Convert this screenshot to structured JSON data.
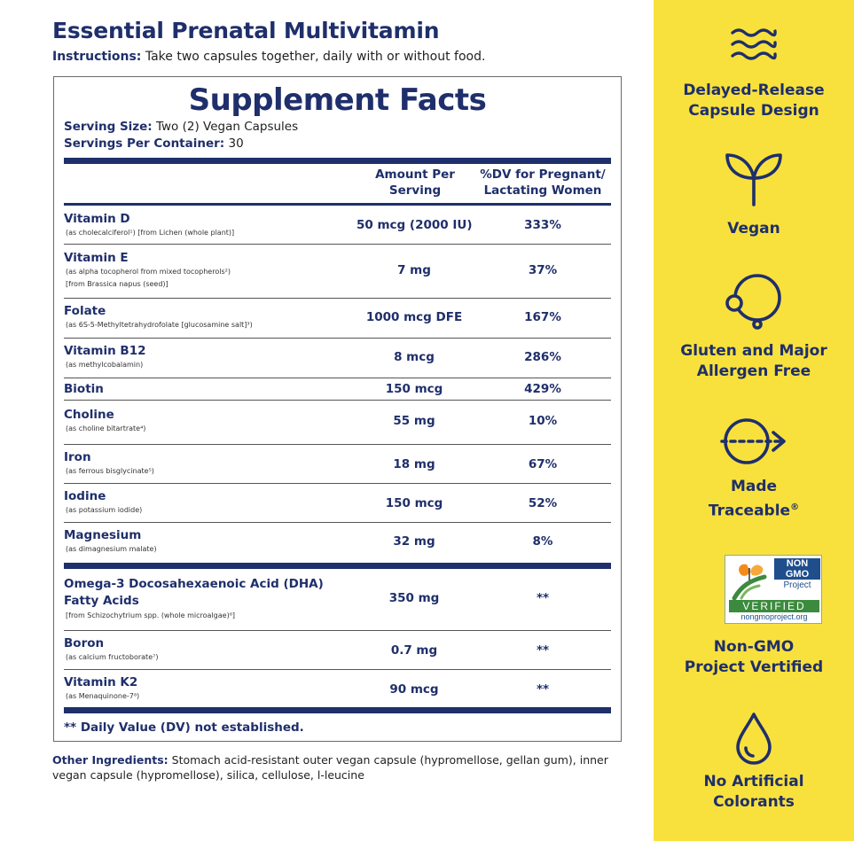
{
  "header": {
    "title": "Essential Prenatal Multivitamin",
    "instructions_label": "Instructions:",
    "instructions_text": " Take two capsules together, daily with or without food."
  },
  "facts": {
    "title": "Supplement Facts",
    "serving_size_label": "Serving Size:",
    "serving_size_value": " Two (2) Vegan Capsules",
    "servings_label": "Servings Per Container:",
    "servings_value": " 30",
    "col_amount_line1": "Amount Per",
    "col_amount_line2": "Serving",
    "col_dv_line1": "%DV for Pregnant/",
    "col_dv_line2": "Lactating Women",
    "rows": [
      {
        "name": "Vitamin D",
        "sub": "(as cholecalciferol¹) [from Lichen (whole plant)]",
        "amount": "50 mcg (2000 IU)",
        "dv": "333%"
      },
      {
        "name": "Vitamin E",
        "sub": "(as alpha tocopherol from mixed tocopherols²)",
        "sub2": "[from Brassica napus (seed)]",
        "amount": "7 mg",
        "dv": "37%"
      },
      {
        "name": "Folate",
        "sub": "(as 6S-5-Methyltetrahydrofolate [glucosamine salt]³)",
        "amount": "1000 mcg DFE",
        "dv": "167%"
      },
      {
        "name": "Vitamin B12",
        "sub": "(as methylcobalamin)",
        "amount": "8 mcg",
        "dv": "286%"
      },
      {
        "name": "Biotin",
        "amount": "150 mcg",
        "dv": "429%"
      },
      {
        "name": "Choline",
        "sub": "(as choline bitartrate⁴)",
        "amount": "55 mg",
        "dv": "10%"
      },
      {
        "name": "Iron",
        "sub": "(as ferrous bisglycinate⁵)",
        "amount": "18 mg",
        "dv": "67%"
      },
      {
        "name": "Iodine",
        "sub": "(as potassium iodide)",
        "amount": "150 mcg",
        "dv": "52%"
      },
      {
        "name": "Magnesium",
        "sub": "(as dimagnesium malate)",
        "amount": "32 mg",
        "dv": "8%"
      }
    ],
    "rows2": [
      {
        "name": "Omega-3 Docosahexaenoic Acid (DHA)",
        "name2": "Fatty Acids",
        "sub": "[from Schizochytrium spp. (whole microalgae)⁶]",
        "amount": "350 mg",
        "dv": "**"
      },
      {
        "name": "Boron",
        "sub": "(as calcium fructoborate⁷)",
        "amount": "0.7 mg",
        "dv": "**"
      },
      {
        "name": "Vitamin K2",
        "sub": "(as Menaquinone-7⁸)",
        "amount": "90 mcg",
        "dv": "**"
      }
    ],
    "footnote": "** Daily Value (DV) not established."
  },
  "other": {
    "label": "Other Ingredients:",
    "text": " Stomach acid-resistant outer vegan capsule (hypromellose, gellan gum), inner vegan capsule (hypromellose),  silica, cellulose, l-leucine"
  },
  "features": [
    {
      "icon": "waves-icon",
      "line1": "Delayed-Release",
      "line2": "Capsule Design"
    },
    {
      "icon": "sprout-icon",
      "line1": "Vegan",
      "line2": ""
    },
    {
      "icon": "globe-connection-icon",
      "line1": "Gluten and Major",
      "line2": "Allergen Free"
    },
    {
      "icon": "traceable-arrow-icon",
      "line1": "Made",
      "line2": "Traceable",
      "mark": "®"
    },
    {
      "icon": "non-gmo-badge",
      "line1": "Non-GMO",
      "line2": "Project Vertified"
    },
    {
      "icon": "droplet-icon",
      "line1": "No Artificial",
      "line2": "Colorants"
    }
  ],
  "badge": {
    "non": "NON",
    "gmo": "GMO",
    "project": "Project",
    "verified": "VERIFIED",
    "url": "nongmoproject.org"
  },
  "colors": {
    "navy": "#1f2f6b",
    "yellow": "#f9e13d"
  }
}
